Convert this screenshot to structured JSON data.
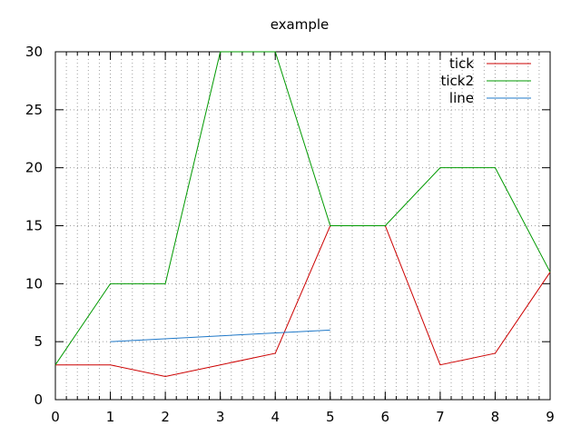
{
  "chart_data": {
    "type": "line",
    "title": "example",
    "xlabel": "",
    "ylabel": "",
    "xlim": [
      0,
      9
    ],
    "ylim": [
      0,
      30
    ],
    "x_ticks": [
      0,
      1,
      2,
      3,
      4,
      5,
      6,
      7,
      8,
      9
    ],
    "y_ticks": [
      0,
      5,
      10,
      15,
      20,
      25,
      30
    ],
    "x_minor_step": 0.2,
    "grid": true,
    "legend_position": "top-right",
    "series": [
      {
        "name": "tick",
        "color": "#cc0000",
        "x": [
          0,
          1,
          2,
          3,
          4,
          5,
          6,
          7,
          8,
          9
        ],
        "y": [
          3,
          3,
          2,
          3,
          4,
          15,
          15,
          3,
          4,
          11
        ]
      },
      {
        "name": "tick2",
        "color": "#009900",
        "x": [
          0,
          1,
          2,
          3,
          4,
          5,
          6,
          7,
          8,
          9
        ],
        "y": [
          3,
          10,
          10,
          30,
          30,
          15,
          15,
          20,
          20,
          11
        ]
      },
      {
        "name": "line",
        "color": "#1f78c8",
        "x": [
          1,
          5
        ],
        "y": [
          5,
          6
        ]
      }
    ]
  }
}
